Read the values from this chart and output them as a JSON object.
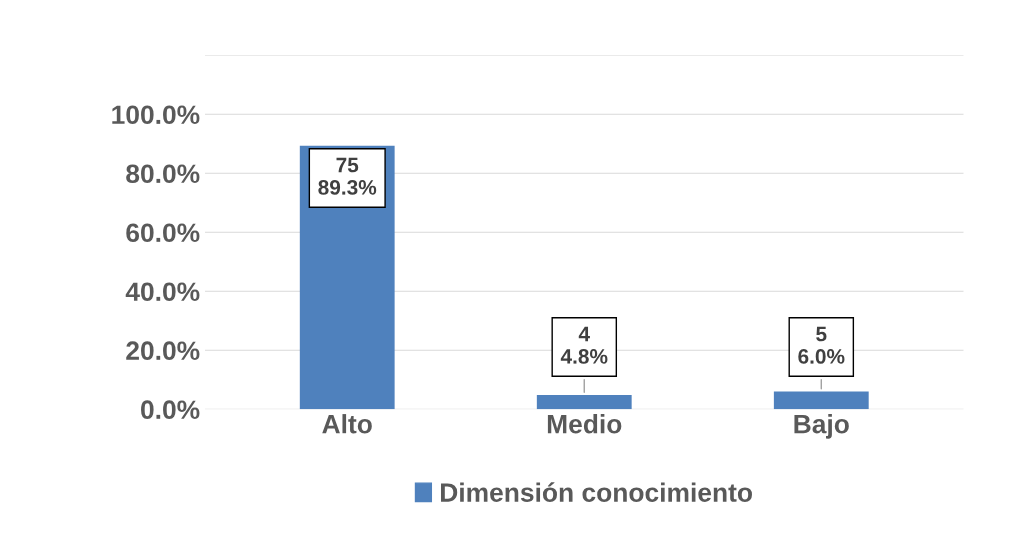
{
  "chart_data": {
    "type": "bar",
    "categories": [
      "Alto",
      "Medio",
      "Bajo"
    ],
    "series": [
      {
        "name": "Dimensión conocimiento",
        "color": "#4f81bd",
        "values": [
          89.3,
          4.8,
          6.0
        ],
        "value_labels": [
          "75\n89.3%",
          "4\n4.8%",
          "5\n6.0%"
        ]
      }
    ],
    "ylim": [
      0,
      120
    ],
    "yticks": [
      {
        "value": 0,
        "label": "0.0%"
      },
      {
        "value": 20,
        "label": "20.0%"
      },
      {
        "value": 40,
        "label": "40.0%"
      },
      {
        "value": 60,
        "label": "60.0%"
      },
      {
        "value": 80,
        "label": "80.0%"
      },
      {
        "value": 100,
        "label": "100.0%"
      },
      {
        "value": 120,
        "label": null
      }
    ],
    "grid": "y",
    "legend": "bottom"
  }
}
